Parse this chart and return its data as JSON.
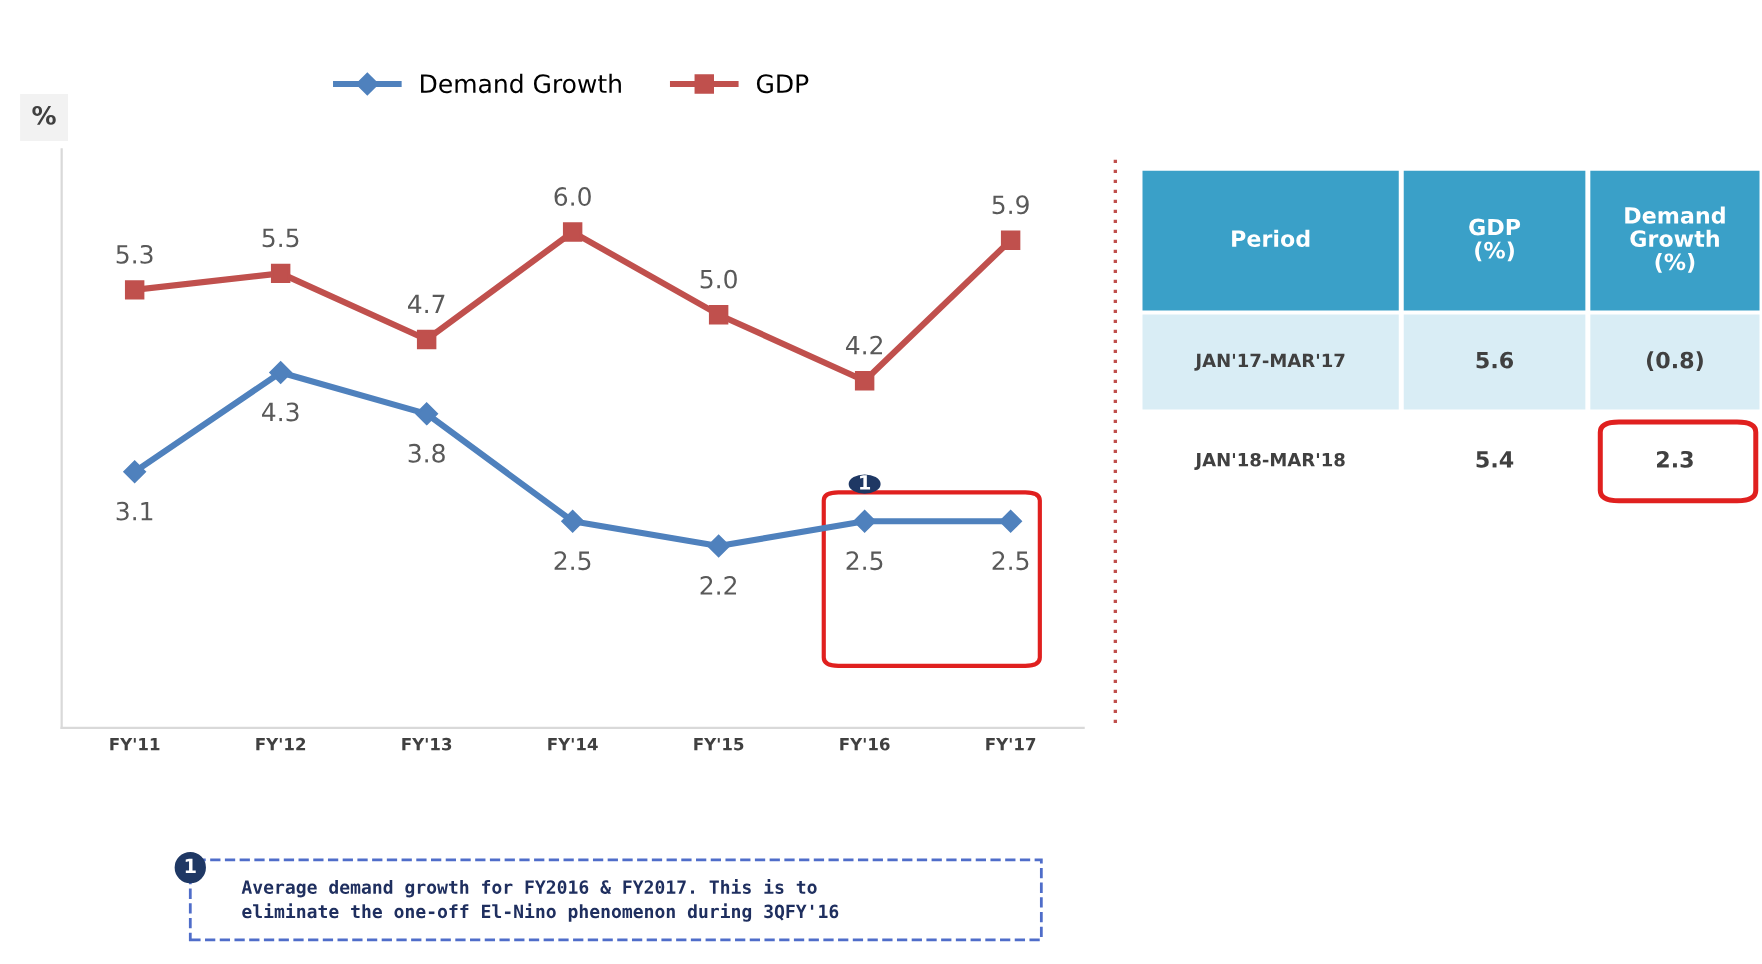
{
  "chart_data": [
    {
      "type": "line",
      "ylabel": "%",
      "categories": [
        "FY'11",
        "FY'12",
        "FY'13",
        "FY'14",
        "FY'15",
        "FY'16",
        "FY'17"
      ],
      "series": [
        {
          "name": "Demand Growth",
          "color": "#4f81bd",
          "marker": "diamond",
          "values": [
            3.1,
            4.3,
            3.8,
            2.5,
            2.2,
            2.5,
            2.5
          ],
          "value_labels": [
            "3.1",
            "4.3",
            "3.8",
            "2.5",
            "2.2",
            "2.5",
            "2.5"
          ]
        },
        {
          "name": "GDP",
          "color": "#c0504d",
          "marker": "square",
          "values": [
            5.3,
            5.5,
            4.7,
            6.0,
            5.0,
            4.2,
            5.9
          ],
          "value_labels": [
            "5.3",
            "5.5",
            "4.7",
            "6.0",
            "5.0",
            "4.2",
            "5.9"
          ]
        }
      ],
      "ylim": [
        0,
        7
      ],
      "tick_labels": "x",
      "legend": "top",
      "grid": false,
      "annotations": [
        {
          "text": "1",
          "x": "FY'16",
          "y": 2.5
        },
        "1",
        "Average demand growth for FY2016 & FY2017. This is to\neliminate the one-off El-Nino phenomenon during 3QFY'16"
      ]
    },
    {
      "type": "other",
      "categories": [
        "Period",
        "GDP\n(%)",
        "Demand\nGrowth\n(%)"
      ],
      "y_categories": [
        "JAN'17-MAR'17",
        "JAN'18-MAR'18"
      ],
      "cell_labels": [
        [
          "5.6",
          "(0.8)"
        ],
        [
          "5.4",
          "2.3"
        ]
      ]
    }
  ]
}
